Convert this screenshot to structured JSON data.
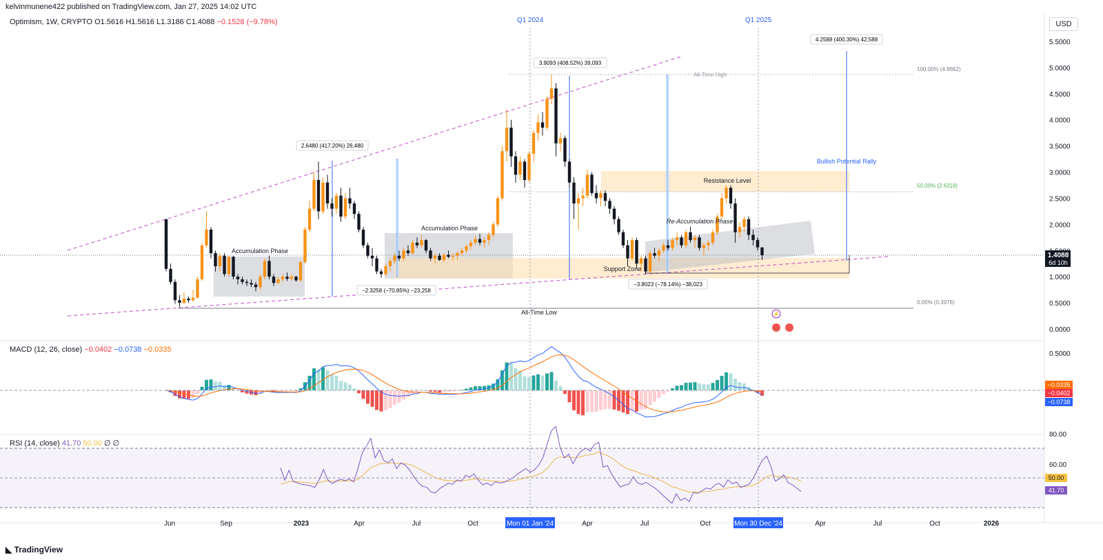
{
  "header": {
    "published_line": "kelvinmunene422 published on TradingView.com, Jan 27, 2025 14:02 UTC"
  },
  "legend": {
    "symbol": "Optimism, 1W, CRYPTO",
    "ohlc": "O1.5616 H1.5616 L1.3186 C1.4088",
    "change": "−0.1528 (−9.78%)"
  },
  "currency_button": "USD",
  "macd_legend": {
    "label": "MACD (12, 26, close)",
    "v1": "−0.0402",
    "v2": "−0.0738",
    "v3": "−0.0335"
  },
  "rsi_legend": {
    "label": "RSI (14, close)",
    "v1": "41.70",
    "v2": "50.00",
    "v3": "∅",
    "v4": "∅"
  },
  "footer_logo": "TradingView",
  "colors": {
    "up": "#f7931a",
    "down": "#131722",
    "macd": "#2962ff",
    "signal": "#ff6d00",
    "hist_pos": "#26a69a",
    "hist_neg": "#ef5350",
    "rsi": "#7e57c2",
    "rsi_ma": "#f5c242",
    "wedge": "#c048c8"
  },
  "chart_data": {
    "type": "candlestick",
    "price_axis": {
      "ticks": [
        "5.5000",
        "5.0000",
        "4.5000",
        "4.0000",
        "3.5000",
        "3.0000",
        "2.5000",
        "2.0000",
        "1.5000",
        "1.0000",
        "0.5000",
        "0.0000"
      ],
      "last_price": "1.4088",
      "countdown": "6d 10h"
    },
    "macd_axis": {
      "ticks": [
        "0.5000"
      ],
      "labels": [
        "−0.0335",
        "−0.0402",
        "−0.0738"
      ]
    },
    "rsi_axis": {
      "ticks": [
        "80.00",
        "60.00"
      ],
      "labels": [
        "50.00",
        "41.70"
      ]
    },
    "time_axis": [
      "Jun",
      "Sep",
      "2023",
      "Apr",
      "Jul",
      "Oct",
      "Mon 01 Jan '24",
      "Apr",
      "Jul",
      "Oct",
      "Mon 30 Dec '24",
      "Apr",
      "Jul",
      "Oct",
      "2026"
    ],
    "period_labels": [
      "Q1 2024",
      "Q1 2025"
    ],
    "annotations": {
      "accumulation_1": "Accumulation Phase",
      "accumulation_2": "Accumulation Phase",
      "reaccumulation": "Re-Accumulation Phase",
      "resistance": "Resistance Level",
      "support": "Support Zone",
      "ath": "All-Time High",
      "atl": "All-Time Low",
      "rally": "Bullish Potential Rally",
      "fib_100": "100.00% (4.8662)",
      "fib_50": "50.00% (2.6319)",
      "fib_0": "0.00% (0.3976)",
      "measure_1": "2.6480 (417.20%) 26,480",
      "measure_2": "−2.3258 (−70.85%) −23,258",
      "measure_3": "3.9093 (408.52%) 39,093",
      "measure_4": "−3.8023 (−78.14%) −38,023",
      "measure_5": "4.2588 (400.30%) 42,588"
    },
    "candles": [
      [
        2.1,
        2.1,
        1.1,
        1.15
      ],
      [
        1.15,
        1.25,
        0.85,
        0.9
      ],
      [
        0.9,
        0.95,
        0.48,
        0.55
      ],
      [
        0.55,
        0.65,
        0.42,
        0.5
      ],
      [
        0.5,
        0.7,
        0.48,
        0.58
      ],
      [
        0.58,
        0.62,
        0.5,
        0.55
      ],
      [
        0.55,
        0.75,
        0.52,
        0.6
      ],
      [
        0.6,
        1.0,
        0.58,
        0.95
      ],
      [
        0.95,
        1.65,
        0.92,
        1.6
      ],
      [
        1.6,
        2.25,
        1.55,
        1.9
      ],
      [
        1.9,
        1.95,
        1.35,
        1.45
      ],
      [
        1.45,
        1.5,
        1.1,
        1.2
      ],
      [
        1.2,
        1.45,
        1.1,
        1.4
      ],
      [
        1.4,
        1.45,
        1.0,
        1.05
      ],
      [
        1.05,
        1.4,
        1.0,
        1.38
      ],
      [
        1.38,
        1.4,
        0.95,
        1.0
      ],
      [
        1.0,
        1.05,
        0.85,
        0.95
      ],
      [
        0.95,
        1.0,
        0.85,
        0.9
      ],
      [
        0.9,
        0.95,
        0.82,
        0.88
      ],
      [
        0.88,
        0.95,
        0.8,
        0.85
      ],
      [
        0.85,
        0.9,
        0.72,
        0.8
      ],
      [
        0.8,
        1.05,
        0.75,
        1.0
      ],
      [
        1.0,
        1.35,
        0.95,
        1.3
      ],
      [
        1.3,
        1.4,
        0.95,
        1.0
      ],
      [
        1.0,
        1.05,
        0.82,
        0.88
      ],
      [
        0.88,
        1.0,
        0.85,
        0.95
      ],
      [
        0.95,
        1.05,
        0.9,
        1.0
      ],
      [
        1.0,
        1.08,
        0.92,
        0.96
      ],
      [
        0.96,
        1.05,
        0.92,
        1.0
      ],
      [
        1.0,
        1.02,
        0.9,
        0.93
      ],
      [
        0.93,
        1.3,
        0.9,
        1.28
      ],
      [
        1.28,
        1.95,
        1.25,
        1.9
      ],
      [
        1.9,
        2.45,
        1.85,
        2.3
      ],
      [
        2.3,
        3.0,
        2.25,
        2.85
      ],
      [
        2.85,
        3.2,
        2.1,
        2.25
      ],
      [
        2.25,
        2.9,
        2.2,
        2.8
      ],
      [
        2.8,
        2.95,
        2.3,
        2.4
      ],
      [
        2.4,
        2.5,
        2.15,
        2.3
      ],
      [
        2.3,
        2.6,
        2.2,
        2.55
      ],
      [
        2.55,
        2.7,
        2.05,
        2.15
      ],
      [
        2.15,
        2.6,
        2.1,
        2.5
      ],
      [
        2.5,
        2.7,
        2.3,
        2.4
      ],
      [
        2.4,
        2.45,
        2.1,
        2.2
      ],
      [
        2.2,
        2.25,
        1.85,
        1.9
      ],
      [
        1.9,
        1.95,
        1.55,
        1.6
      ],
      [
        1.6,
        1.65,
        1.35,
        1.4
      ],
      [
        1.4,
        1.55,
        1.2,
        1.35
      ],
      [
        1.35,
        1.4,
        1.05,
        1.1
      ],
      [
        1.1,
        1.15,
        0.98,
        1.05
      ],
      [
        1.05,
        1.25,
        1.0,
        1.2
      ],
      [
        1.2,
        1.35,
        1.1,
        1.3
      ],
      [
        1.3,
        1.45,
        1.25,
        1.4
      ],
      [
        1.4,
        1.5,
        1.3,
        1.35
      ],
      [
        1.35,
        1.55,
        1.3,
        1.5
      ],
      [
        1.5,
        1.6,
        1.4,
        1.45
      ],
      [
        1.45,
        1.7,
        1.42,
        1.65
      ],
      [
        1.65,
        1.75,
        1.55,
        1.6
      ],
      [
        1.6,
        1.8,
        1.55,
        1.7
      ],
      [
        1.7,
        1.72,
        1.45,
        1.5
      ],
      [
        1.5,
        1.55,
        1.3,
        1.35
      ],
      [
        1.35,
        1.45,
        1.25,
        1.4
      ],
      [
        1.4,
        1.45,
        1.3,
        1.32
      ],
      [
        1.32,
        1.45,
        1.28,
        1.42
      ],
      [
        1.42,
        1.5,
        1.35,
        1.38
      ],
      [
        1.38,
        1.45,
        1.3,
        1.4
      ],
      [
        1.4,
        1.48,
        1.32,
        1.45
      ],
      [
        1.45,
        1.55,
        1.4,
        1.5
      ],
      [
        1.5,
        1.62,
        1.45,
        1.58
      ],
      [
        1.58,
        1.7,
        1.52,
        1.65
      ],
      [
        1.65,
        1.78,
        1.6,
        1.72
      ],
      [
        1.72,
        1.82,
        1.6,
        1.65
      ],
      [
        1.65,
        1.75,
        1.55,
        1.7
      ],
      [
        1.7,
        1.85,
        1.6,
        1.8
      ],
      [
        1.8,
        2.05,
        1.75,
        2.0
      ],
      [
        2.0,
        2.55,
        1.95,
        2.5
      ],
      [
        2.5,
        3.5,
        2.45,
        3.4
      ],
      [
        3.4,
        4.2,
        3.2,
        3.85
      ],
      [
        3.85,
        4.0,
        3.1,
        3.3
      ],
      [
        3.3,
        3.4,
        2.8,
        2.95
      ],
      [
        2.95,
        3.3,
        2.85,
        3.2
      ],
      [
        3.2,
        3.25,
        2.7,
        2.85
      ],
      [
        2.85,
        3.4,
        2.8,
        3.35
      ],
      [
        3.35,
        3.8,
        3.2,
        3.75
      ],
      [
        3.75,
        4.1,
        3.6,
        3.95
      ],
      [
        3.95,
        4.15,
        3.7,
        3.85
      ],
      [
        3.85,
        4.45,
        3.8,
        4.4
      ],
      [
        4.4,
        4.87,
        4.3,
        4.6
      ],
      [
        4.6,
        4.7,
        3.3,
        3.55
      ],
      [
        3.55,
        3.75,
        3.4,
        3.65
      ],
      [
        3.65,
        3.7,
        3.1,
        3.2
      ],
      [
        3.2,
        3.25,
        2.7,
        2.8
      ],
      [
        2.8,
        2.9,
        2.1,
        2.4
      ],
      [
        2.4,
        2.6,
        1.9,
        2.5
      ],
      [
        2.5,
        2.7,
        2.35,
        2.55
      ],
      [
        2.55,
        3.05,
        2.5,
        2.95
      ],
      [
        2.95,
        3.0,
        2.55,
        2.6
      ],
      [
        2.6,
        2.75,
        2.4,
        2.5
      ],
      [
        2.5,
        2.65,
        2.35,
        2.6
      ],
      [
        2.6,
        2.65,
        2.35,
        2.45
      ],
      [
        2.45,
        2.5,
        2.2,
        2.3
      ],
      [
        2.3,
        2.35,
        2.0,
        2.1
      ],
      [
        2.1,
        2.15,
        1.8,
        1.85
      ],
      [
        1.85,
        1.9,
        1.55,
        1.6
      ],
      [
        1.6,
        1.7,
        1.2,
        1.35
      ],
      [
        1.35,
        1.75,
        1.3,
        1.7
      ],
      [
        1.7,
        1.75,
        1.15,
        1.25
      ],
      [
        1.25,
        1.4,
        1.1,
        1.35
      ],
      [
        1.35,
        1.4,
        1.05,
        1.1
      ],
      [
        1.1,
        1.5,
        1.05,
        1.45
      ],
      [
        1.45,
        1.55,
        1.35,
        1.4
      ],
      [
        1.4,
        1.55,
        1.3,
        1.5
      ],
      [
        1.5,
        1.65,
        1.45,
        1.6
      ],
      [
        1.6,
        1.7,
        1.5,
        1.55
      ],
      [
        1.55,
        1.75,
        1.5,
        1.7
      ],
      [
        1.7,
        1.85,
        1.6,
        1.75
      ],
      [
        1.75,
        1.8,
        1.55,
        1.6
      ],
      [
        1.6,
        1.9,
        1.55,
        1.85
      ],
      [
        1.85,
        1.95,
        1.65,
        1.7
      ],
      [
        1.7,
        1.8,
        1.55,
        1.75
      ],
      [
        1.75,
        1.8,
        1.5,
        1.55
      ],
      [
        1.55,
        1.65,
        1.4,
        1.6
      ],
      [
        1.6,
        1.7,
        1.5,
        1.65
      ],
      [
        1.65,
        1.9,
        1.6,
        1.85
      ],
      [
        1.85,
        2.2,
        1.8,
        2.15
      ],
      [
        2.15,
        2.6,
        2.1,
        2.5
      ],
      [
        2.5,
        2.75,
        2.4,
        2.7
      ],
      [
        2.7,
        2.75,
        2.3,
        2.4
      ],
      [
        2.4,
        2.5,
        1.65,
        1.85
      ],
      [
        1.85,
        2.05,
        1.75,
        1.95
      ],
      [
        1.95,
        2.15,
        1.85,
        2.1
      ],
      [
        2.1,
        2.15,
        1.7,
        1.8
      ],
      [
        1.8,
        1.9,
        1.6,
        1.7
      ],
      [
        1.7,
        1.75,
        1.5,
        1.56
      ],
      [
        1.56,
        1.56,
        1.32,
        1.41
      ]
    ]
  }
}
